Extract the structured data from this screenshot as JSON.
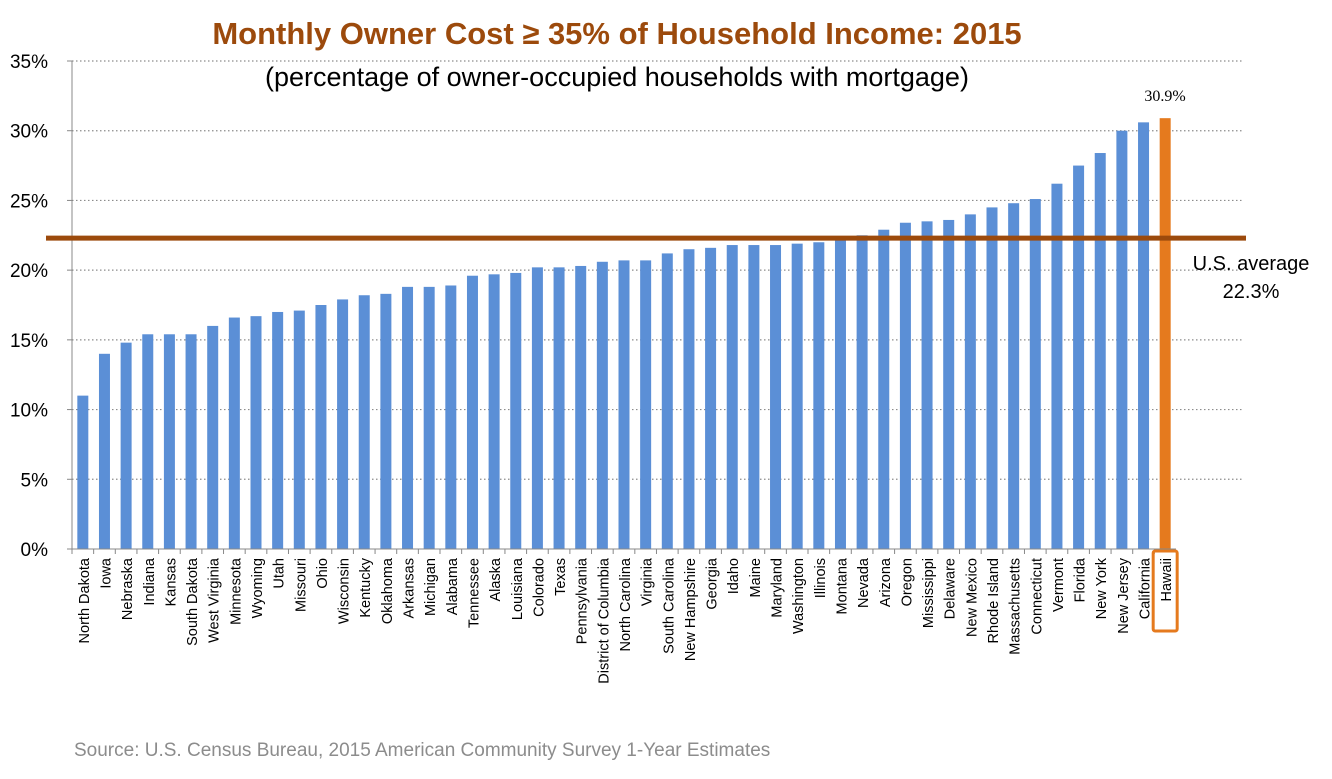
{
  "chart_data": {
    "type": "bar",
    "title": "Monthly Owner Cost ≥ 35% of Household Income: 2015",
    "subtitle": "(percentage of owner-occupied households with mortgage)",
    "source": "Source: U.S. Census Bureau, 2015 American Community Survey 1-Year Estimates",
    "ylim": [
      0,
      35
    ],
    "yticks": [
      "0%",
      "5%",
      "10%",
      "15%",
      "20%",
      "25%",
      "30%",
      "35%"
    ],
    "grid": true,
    "categories": [
      "North Dakota",
      "Iowa",
      "Nebraska",
      "Indiana",
      "Kansas",
      "South Dakota",
      "West Virginia",
      "Minnesota",
      "Wyoming",
      "Utah",
      "Missouri",
      "Ohio",
      "Wisconsin",
      "Kentucky",
      "Oklahoma",
      "Arkansas",
      "Michigan",
      "Alabama",
      "Tennessee",
      "Alaska",
      "Louisiana",
      "Colorado",
      "Texas",
      "Pennsylvania",
      "District of Columbia",
      "North Carolina",
      "Virginia",
      "South Carolina",
      "New Hampshire",
      "Georgia",
      "Idaho",
      "Maine",
      "Maryland",
      "Washington",
      "Illinois",
      "Montana",
      "Nevada",
      "Arizona",
      "Oregon",
      "Mississippi",
      "Delaware",
      "New Mexico",
      "Rhode Island",
      "Massachusetts",
      "Connecticut",
      "Vermont",
      "Florida",
      "New York",
      "New Jersey",
      "California",
      "Hawaii"
    ],
    "values": [
      11.0,
      14.0,
      14.8,
      15.4,
      15.4,
      15.4,
      16.0,
      16.6,
      16.7,
      17.0,
      17.1,
      17.5,
      17.9,
      18.2,
      18.3,
      18.8,
      18.8,
      18.9,
      19.6,
      19.7,
      19.8,
      20.2,
      20.2,
      20.3,
      20.6,
      20.7,
      20.7,
      21.2,
      21.5,
      21.6,
      21.8,
      21.8,
      21.8,
      21.9,
      22.0,
      22.4,
      22.5,
      22.9,
      23.4,
      23.5,
      23.6,
      24.0,
      24.5,
      24.8,
      25.1,
      26.2,
      27.5,
      28.4,
      30.0,
      30.6,
      30.9
    ],
    "highlight": {
      "category": "Hawaii",
      "label": "30.9%"
    },
    "reference_line": {
      "value": 22.3,
      "label_line1": "U.S. average",
      "label_line2": "22.3%"
    },
    "colors": {
      "bar": "#5b8fd6",
      "highlight": "#e57a1e",
      "reference": "#9c4a0c",
      "title": "#9c4a0c",
      "grid": "#8c8c8c",
      "axis_text": "#000000",
      "source": "#8c8c8c"
    }
  }
}
